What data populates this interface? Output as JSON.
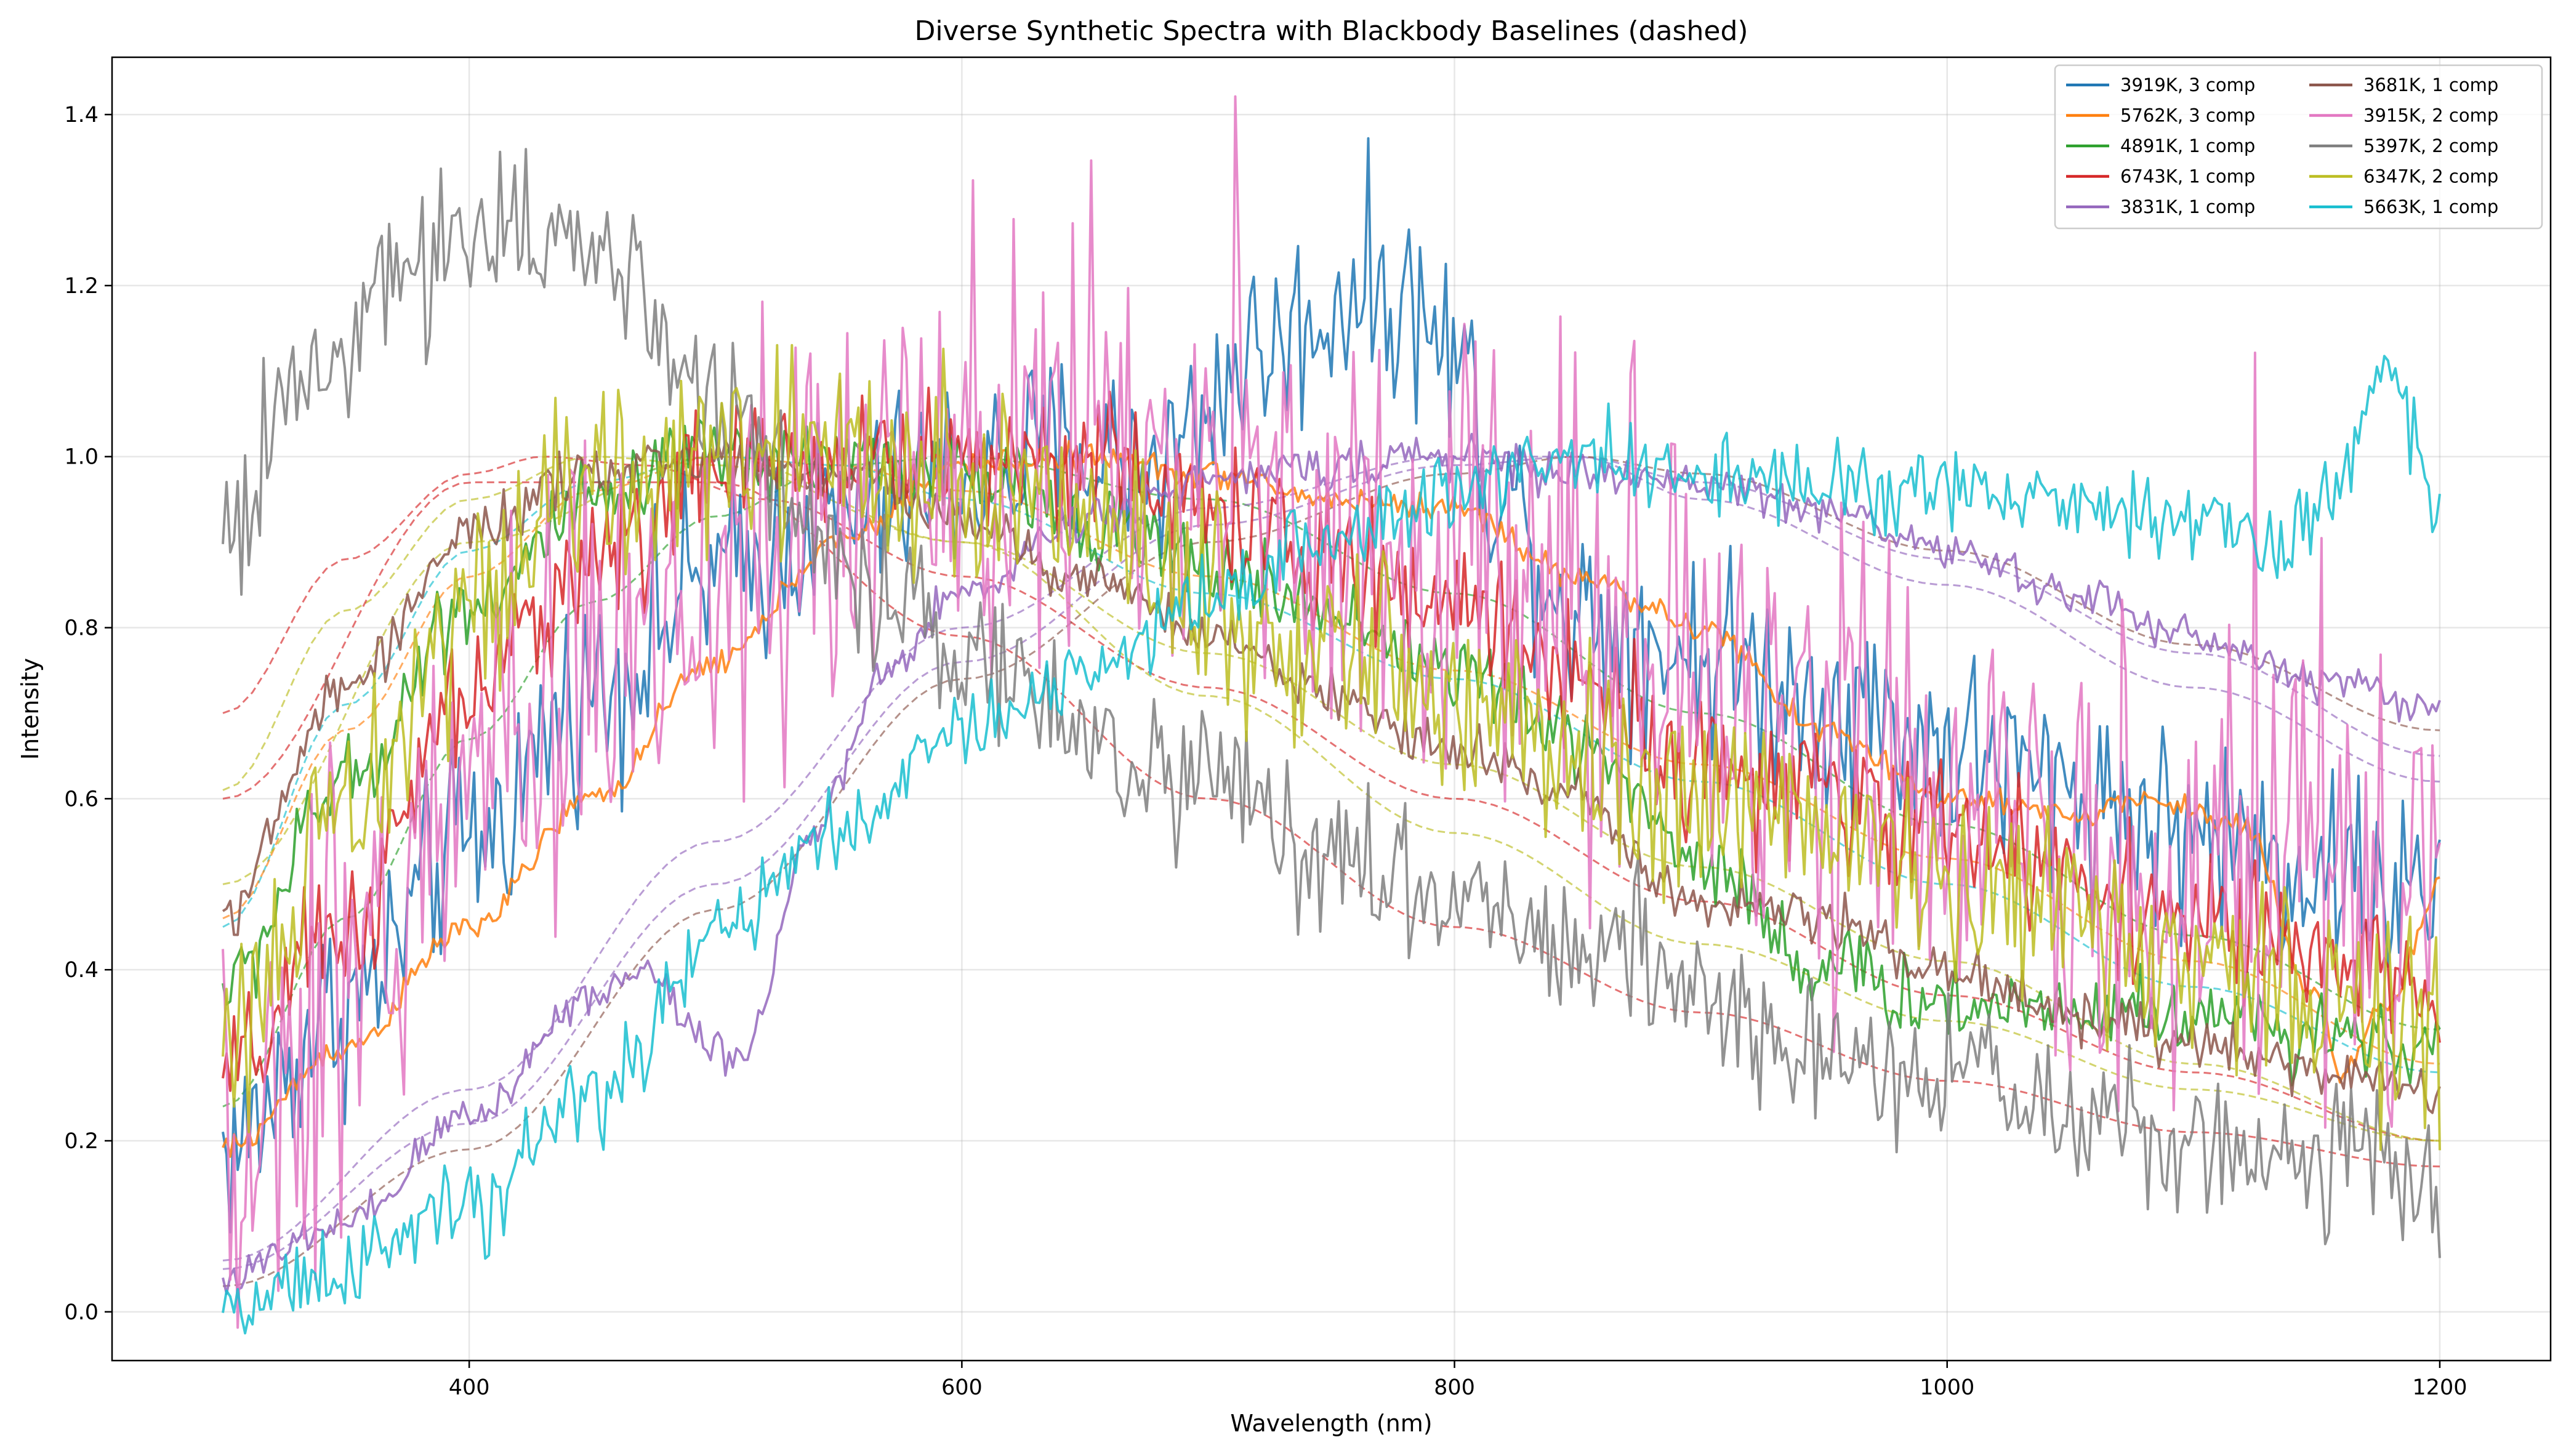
{
  "chart_data": {
    "type": "line",
    "title": "Diverse Synthetic Spectra with Blackbody Baselines (dashed)",
    "xlabel": "Wavelength (nm)",
    "ylabel": "Intensity",
    "xlim": [
      255,
      1245
    ],
    "ylim": [
      -0.057,
      1.467
    ],
    "xticks": [
      400,
      600,
      800,
      1000,
      1200
    ],
    "xtick_labels": [
      "400",
      "600",
      "800",
      "1000",
      "1200"
    ],
    "yticks": [
      0.0,
      0.2,
      0.4,
      0.6,
      0.8,
      1.0,
      1.2,
      1.4
    ],
    "ytick_labels": [
      "0.0",
      "0.2",
      "0.4",
      "0.6",
      "0.8",
      "1.0",
      "1.2",
      "1.4"
    ],
    "grid": true,
    "legend_position": "top-right",
    "legend_columns": 2,
    "series": [
      {
        "name": "3919K, 3 comp",
        "color": "#1f77b4",
        "x": [
          300,
          350,
          400,
          450,
          500,
          550,
          600,
          640,
          680,
          720,
          740,
          760,
          780,
          800,
          820,
          850,
          900,
          950,
          1000,
          1050,
          1100,
          1150,
          1200
        ],
        "y": [
          0.19,
          0.36,
          0.55,
          0.73,
          0.86,
          0.93,
          0.98,
          1.0,
          1.0,
          1.12,
          1.15,
          1.2,
          1.18,
          1.12,
          0.95,
          0.82,
          0.77,
          0.72,
          0.66,
          0.61,
          0.56,
          0.52,
          0.48
        ],
        "noise": 0.06
      },
      {
        "name": "5762K, 3 comp",
        "color": "#ff7f0e",
        "x": [
          300,
          350,
          400,
          450,
          500,
          550,
          600,
          650,
          700,
          750,
          800,
          850,
          900,
          950,
          1000,
          1050,
          1080,
          1120,
          1150,
          1160,
          1180,
          1200
        ],
        "y": [
          0.19,
          0.31,
          0.45,
          0.6,
          0.76,
          0.9,
          0.99,
          1.0,
          0.98,
          0.95,
          0.94,
          0.86,
          0.8,
          0.68,
          0.6,
          0.58,
          0.6,
          0.57,
          0.37,
          0.28,
          0.36,
          0.5
        ],
        "noise": 0.008
      },
      {
        "name": "4891K, 1 comp",
        "color": "#2ca02c",
        "x": [
          300,
          350,
          400,
          450,
          500,
          550,
          600,
          650,
          700,
          750,
          800,
          850,
          900,
          950,
          1000,
          1050,
          1100,
          1150,
          1200
        ],
        "y": [
          0.38,
          0.62,
          0.83,
          0.94,
          1.0,
          1.0,
          0.98,
          0.93,
          0.87,
          0.82,
          0.75,
          0.67,
          0.53,
          0.4,
          0.36,
          0.36,
          0.35,
          0.33,
          0.31
        ],
        "noise": 0.025
      },
      {
        "name": "6743K, 1 comp",
        "color": "#d62728",
        "x": [
          300,
          350,
          400,
          450,
          500,
          550,
          600,
          650,
          700,
          750,
          800,
          850,
          900,
          950,
          1000,
          1050,
          1100,
          1150,
          1200
        ],
        "y": [
          0.27,
          0.45,
          0.72,
          0.88,
          0.98,
          1.0,
          1.0,
          1.0,
          0.94,
          0.87,
          0.83,
          0.75,
          0.64,
          0.6,
          0.57,
          0.51,
          0.46,
          0.41,
          0.37
        ],
        "noise": 0.04
      },
      {
        "name": "3831K, 1 comp",
        "color": "#9467bd",
        "x": [
          300,
          350,
          400,
          450,
          470,
          500,
          510,
          540,
          570,
          600,
          650,
          700,
          750,
          800,
          850,
          900,
          950,
          1000,
          1050,
          1100,
          1150,
          1200
        ],
        "y": [
          0.04,
          0.1,
          0.23,
          0.37,
          0.4,
          0.31,
          0.3,
          0.56,
          0.75,
          0.84,
          0.93,
          0.97,
          0.99,
          1.0,
          0.98,
          0.97,
          0.94,
          0.89,
          0.84,
          0.79,
          0.74,
          0.71
        ],
        "noise": 0.012
      },
      {
        "name": "3681K, 1 comp",
        "color": "#8c564b",
        "x": [
          300,
          350,
          400,
          450,
          500,
          550,
          600,
          650,
          700,
          750,
          800,
          850,
          900,
          950,
          1000,
          1050,
          1100,
          1150,
          1200
        ],
        "y": [
          0.47,
          0.73,
          0.91,
          0.98,
          1.0,
          0.98,
          0.93,
          0.86,
          0.79,
          0.72,
          0.66,
          0.6,
          0.48,
          0.46,
          0.4,
          0.35,
          0.31,
          0.28,
          0.26
        ],
        "noise": 0.015
      },
      {
        "name": "3915K, 2 comp",
        "color": "#e377c2",
        "x": [
          300,
          350,
          400,
          450,
          500,
          550,
          600,
          650,
          700,
          750,
          800,
          850,
          900,
          950,
          1000,
          1050,
          1100,
          1150,
          1200
        ],
        "y": [
          0.17,
          0.38,
          0.62,
          0.78,
          0.87,
          0.93,
          0.96,
          0.99,
          0.97,
          0.91,
          0.86,
          0.8,
          0.71,
          0.65,
          0.59,
          0.55,
          0.53,
          0.51,
          0.48
        ],
        "noise": 0.14
      },
      {
        "name": "5397K, 2 comp",
        "color": "#7f7f7f",
        "x": [
          300,
          330,
          360,
          400,
          430,
          460,
          490,
          520,
          560,
          600,
          650,
          700,
          750,
          800,
          850,
          900,
          950,
          1000,
          1050,
          1100,
          1150,
          1200
        ],
        "y": [
          0.91,
          1.07,
          1.17,
          1.27,
          1.27,
          1.22,
          1.1,
          1.0,
          0.85,
          0.77,
          0.68,
          0.62,
          0.54,
          0.49,
          0.43,
          0.36,
          0.31,
          0.27,
          0.23,
          0.2,
          0.18,
          0.16
        ],
        "noise": 0.045
      },
      {
        "name": "6347K, 2 comp",
        "color": "#bcbd22",
        "x": [
          300,
          350,
          400,
          450,
          500,
          550,
          600,
          650,
          700,
          750,
          800,
          850,
          900,
          950,
          1000,
          1050,
          1100,
          1150,
          1200
        ],
        "y": [
          0.32,
          0.57,
          0.82,
          0.96,
          1.0,
          1.0,
          0.98,
          0.93,
          0.84,
          0.77,
          0.7,
          0.66,
          0.61,
          0.56,
          0.5,
          0.46,
          0.41,
          0.37,
          0.33
        ],
        "noise": 0.06
      },
      {
        "name": "5663K, 1 comp",
        "color": "#17becf",
        "x": [
          300,
          350,
          400,
          450,
          500,
          550,
          600,
          650,
          700,
          750,
          800,
          850,
          900,
          950,
          1000,
          1050,
          1100,
          1140,
          1160,
          1180,
          1190,
          1200
        ],
        "y": [
          0.01,
          0.05,
          0.12,
          0.25,
          0.44,
          0.56,
          0.67,
          0.75,
          0.83,
          0.9,
          0.97,
          1.0,
          0.99,
          0.97,
          0.96,
          0.94,
          0.92,
          0.9,
          0.98,
          1.1,
          1.02,
          0.92
        ],
        "noise": 0.025
      }
    ],
    "baselines": [
      {
        "color": "#d62728",
        "x": [
          300,
          350,
          400,
          430,
          470,
          520,
          600,
          700,
          800,
          900,
          1000,
          1100,
          1200
        ],
        "y": [
          0.7,
          0.88,
          0.98,
          1.0,
          0.99,
          0.95,
          0.86,
          0.73,
          0.6,
          0.48,
          0.37,
          0.28,
          0.2
        ]
      },
      {
        "color": "#bcbd22",
        "x": [
          300,
          350,
          400,
          450,
          500,
          600,
          700,
          800,
          900,
          1000,
          1100,
          1200
        ],
        "y": [
          0.61,
          0.82,
          0.95,
          1.0,
          0.99,
          0.9,
          0.77,
          0.64,
          0.52,
          0.41,
          0.29,
          0.2
        ]
      },
      {
        "color": "#17becf",
        "x": [
          300,
          350,
          400,
          450,
          500,
          550,
          600,
          700,
          800,
          900,
          1000,
          1100,
          1200
        ],
        "y": [
          0.45,
          0.71,
          0.89,
          0.97,
          1.0,
          0.99,
          0.95,
          0.84,
          0.74,
          0.62,
          0.5,
          0.38,
          0.28
        ]
      },
      {
        "color": "#ff7f0e",
        "x": [
          300,
          350,
          400,
          450,
          500,
          550,
          600,
          700,
          800,
          900,
          1000,
          1100,
          1200
        ],
        "y": [
          0.46,
          0.68,
          0.86,
          0.96,
          1.0,
          0.99,
          0.96,
          0.86,
          0.75,
          0.64,
          0.53,
          0.41,
          0.29
        ]
      },
      {
        "color": "#2ca02c",
        "x": [
          300,
          350,
          400,
          450,
          500,
          550,
          600,
          700,
          800,
          900,
          1000,
          1100,
          1200
        ],
        "y": [
          0.24,
          0.46,
          0.67,
          0.83,
          0.93,
          0.99,
          1.0,
          0.95,
          0.84,
          0.7,
          0.57,
          0.44,
          0.33
        ]
      },
      {
        "color": "#9467bd",
        "x": [
          300,
          400,
          500,
          600,
          700,
          800,
          850,
          900,
          1000,
          1100,
          1200
        ],
        "y": [
          0.06,
          0.26,
          0.55,
          0.8,
          0.94,
          1.0,
          1.0,
          0.97,
          0.88,
          0.77,
          0.65
        ]
      },
      {
        "color": "#9467bd",
        "x": [
          300,
          400,
          500,
          600,
          700,
          800,
          850,
          900,
          1000,
          1100,
          1200
        ],
        "y": [
          0.05,
          0.22,
          0.5,
          0.76,
          0.92,
          0.99,
          1.0,
          0.95,
          0.85,
          0.73,
          0.62
        ]
      },
      {
        "color": "#8c564b",
        "x": [
          300,
          400,
          500,
          600,
          700,
          800,
          850,
          900,
          1000,
          1100,
          1200
        ],
        "y": [
          0.03,
          0.19,
          0.47,
          0.74,
          0.9,
          0.98,
          1.0,
          0.98,
          0.89,
          0.78,
          0.68
        ]
      },
      {
        "color": "#d62728",
        "x": [
          300,
          400,
          500,
          600,
          700,
          800,
          900,
          1000,
          1100,
          1200
        ],
        "y": [
          0.6,
          0.97,
          0.97,
          0.79,
          0.6,
          0.45,
          0.35,
          0.27,
          0.21,
          0.17
        ]
      },
      {
        "color": "#bcbd22",
        "x": [
          300,
          400,
          500,
          600,
          700,
          800,
          900,
          1000,
          1100,
          1200
        ],
        "y": [
          0.5,
          0.9,
          1.0,
          0.9,
          0.72,
          0.56,
          0.43,
          0.34,
          0.26,
          0.2
        ]
      }
    ]
  }
}
